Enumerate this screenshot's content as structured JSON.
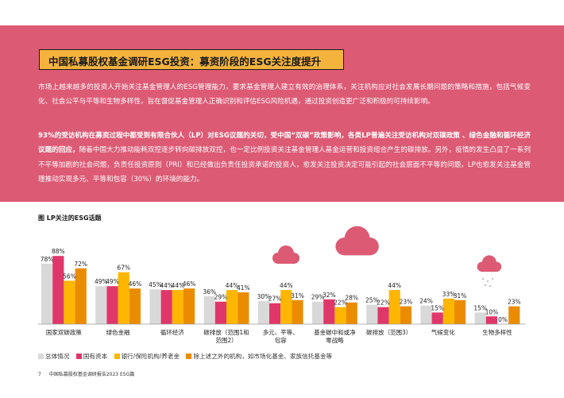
{
  "header": {
    "title": "中国私募股权基金调研ESG投资：募资阶段的ESG关注度提升"
  },
  "body": {
    "paragraph1": "市场上越来越多的投资人开始关注基金管理人的ESG管理能力，要求基金管理人建立有效的治理体系，关注机构应对社会发展长期问题的策略和措施，包括气候变化、社会公平与平等和生物多样性，旨在督促基金管理人正确识别和评估ESG风险机遇，通过投资创造更广泛和积极的可持续影响。",
    "paragraph2_bold": "93%的受访机构在募资过程中都受到有限合伙人（LP）对ESG议题的关切，受中国“双碳”政策影响，各类LP普遍关注受访机构对双碳政策 、绿色金融和循环经济议题的回应，",
    "paragraph2_rest": "随着中国大力推动能耗双控逐步转向碳排放双控，也一定比例投资关注基金管理人基金运营和投资组合产生的碳排放。另外，疫情的发生凸显了一系列不平等加剧的社会问题，负责任投资原则（PRI）和已经做出负责任投资承诺的投资人，愈发关注投资决定可能引起的社会层面不平等的问题，LP也愈发关注基金管理推动实现多元、平等和包容（30%）的环境的能力。"
  },
  "figure": {
    "title": "图 LP关注的ESG话题"
  },
  "colors": {
    "banner": "#dc5a74",
    "title_box": "#f3b33d",
    "cloud": "#dc5a74",
    "series": [
      "#d9d9d9",
      "#e0376a",
      "#ffb600",
      "#eb8c00"
    ]
  },
  "chart_data": {
    "type": "bar",
    "title": "图 LP关注的ESG话题",
    "categories": [
      "国家双碳政策",
      "绿色金融",
      "循环经济",
      "碳排放（范围1和范围2）",
      "多元、平等、包容",
      "基金碳中和或净零战略",
      "碳排放（范围3）",
      "气候变化",
      "生物多样性"
    ],
    "category_lines": [
      [
        "国家双碳政策"
      ],
      [
        "绿色金融"
      ],
      [
        "循环经济"
      ],
      [
        "碳排放（范围1和",
        "范围2）"
      ],
      [
        "多元、平等、",
        "包容"
      ],
      [
        "基金碳中和或净",
        "零战略"
      ],
      [
        "碳排放（范围3）"
      ],
      [
        "气候变化"
      ],
      [
        "生物多样性"
      ]
    ],
    "series": [
      {
        "name": "总体情况",
        "values": [
          78,
          49,
          45,
          36,
          30,
          29,
          25,
          24,
          15
        ]
      },
      {
        "name": "国有资本",
        "values": [
          88,
          49,
          44,
          29,
          27,
          32,
          22,
          15,
          10
        ]
      },
      {
        "name": "银行/保险机构/养老金",
        "values": [
          56,
          67,
          44,
          44,
          44,
          22,
          44,
          33,
          0
        ]
      },
      {
        "name": "除上述之外的机构，如市场化基金、家族信托基金等",
        "values": [
          72,
          46,
          46,
          41,
          31,
          28,
          23,
          31,
          23
        ]
      }
    ],
    "value_suffix": "%",
    "ylim": [
      0,
      100
    ],
    "legend": "bottom",
    "grid": false
  },
  "footer": {
    "page_number": "7",
    "doc_title": "中国私募股权基金调研报告2023 ESG篇"
  }
}
